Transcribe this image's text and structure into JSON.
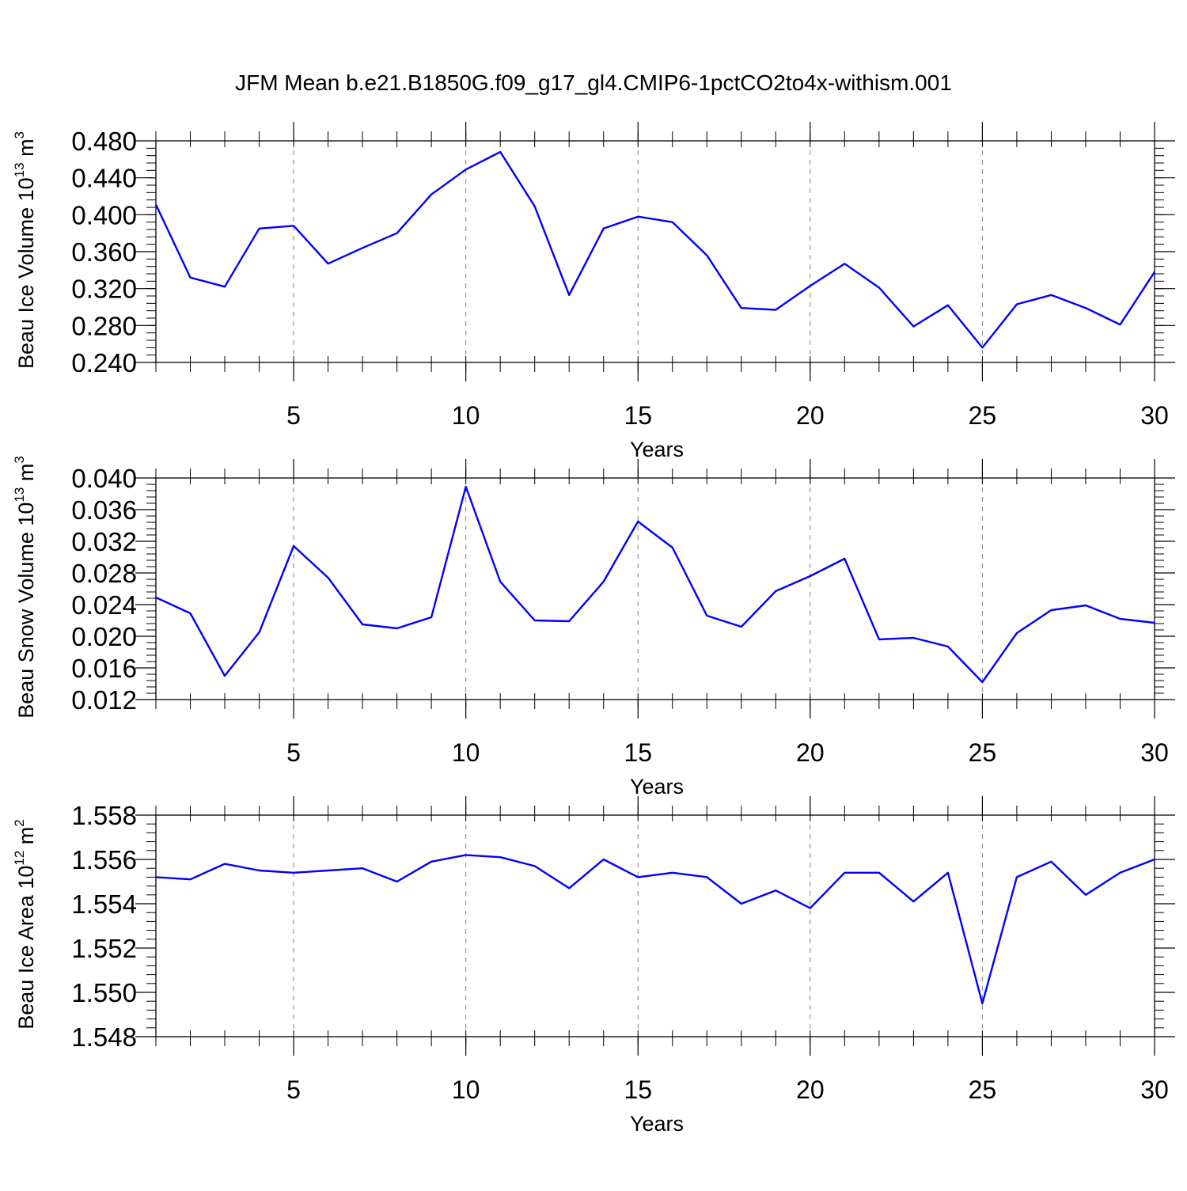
{
  "title": "JFM Mean b.e21.B1850G.f09_g17_gl4.CMIP6-1pctCO2to4x-withism.001",
  "colors": {
    "line": "#0000ff",
    "axis": "#000000",
    "grid": "#808080"
  },
  "chart_data": [
    {
      "type": "line",
      "ylabel_main": "Beau Ice Volume 10",
      "ylabel_exp": "13",
      "ylabel_unit": " m",
      "ylabel_unit_exp": "3",
      "xlabel": "Years",
      "xlim": [
        1,
        30
      ],
      "ylim": [
        0.24,
        0.48
      ],
      "yticks": [
        0.24,
        0.28,
        0.32,
        0.36,
        0.4,
        0.44,
        0.48
      ],
      "yticklabels": [
        "0.240",
        "0.280",
        "0.320",
        "0.360",
        "0.400",
        "0.440",
        "0.480"
      ],
      "xticks": [
        5,
        10,
        15,
        20,
        25,
        30
      ],
      "xticklabels": [
        "5",
        "10",
        "15",
        "20",
        "25",
        "30"
      ],
      "x": [
        1,
        2,
        3,
        4,
        5,
        6,
        7,
        8,
        9,
        10,
        11,
        12,
        13,
        14,
        15,
        16,
        17,
        18,
        19,
        20,
        21,
        22,
        23,
        24,
        25,
        26,
        27,
        28,
        29,
        30
      ],
      "series": [
        {
          "name": "Beau Ice Volume",
          "values": [
            0.411,
            0.332,
            0.322,
            0.385,
            0.388,
            0.347,
            0.364,
            0.38,
            0.422,
            0.449,
            0.468,
            0.409,
            0.313,
            0.385,
            0.398,
            0.392,
            0.356,
            0.299,
            0.297,
            0.323,
            0.347,
            0.321,
            0.279,
            0.302,
            0.256,
            0.303,
            0.313,
            0.299,
            0.281,
            0.338
          ]
        }
      ]
    },
    {
      "type": "line",
      "ylabel_main": "Beau Snow Volume 10",
      "ylabel_exp": "13",
      "ylabel_unit": " m",
      "ylabel_unit_exp": "3",
      "xlabel": "Years",
      "xlim": [
        1,
        30
      ],
      "ylim": [
        0.012,
        0.04
      ],
      "yticks": [
        0.012,
        0.016,
        0.02,
        0.024,
        0.028,
        0.032,
        0.036,
        0.04
      ],
      "yticklabels": [
        "0.012",
        "0.016",
        "0.020",
        "0.024",
        "0.028",
        "0.032",
        "0.036",
        "0.040"
      ],
      "xticks": [
        5,
        10,
        15,
        20,
        25,
        30
      ],
      "xticklabels": [
        "5",
        "10",
        "15",
        "20",
        "25",
        "30"
      ],
      "x": [
        1,
        2,
        3,
        4,
        5,
        6,
        7,
        8,
        9,
        10,
        11,
        12,
        13,
        14,
        15,
        16,
        17,
        18,
        19,
        20,
        21,
        22,
        23,
        24,
        25,
        26,
        27,
        28,
        29,
        30
      ],
      "series": [
        {
          "name": "Beau Snow Volume",
          "values": [
            0.0249,
            0.0229,
            0.015,
            0.0205,
            0.0314,
            0.0274,
            0.0215,
            0.021,
            0.0224,
            0.0389,
            0.0269,
            0.022,
            0.0219,
            0.0269,
            0.0345,
            0.0312,
            0.0226,
            0.0212,
            0.0257,
            0.0276,
            0.0298,
            0.0196,
            0.0198,
            0.0187,
            0.0142,
            0.0204,
            0.0233,
            0.0239,
            0.0222,
            0.0217
          ]
        }
      ]
    },
    {
      "type": "line",
      "ylabel_main": "Beau Ice Area 10",
      "ylabel_exp": "12",
      "ylabel_unit": " m",
      "ylabel_unit_exp": "2",
      "xlabel": "Years",
      "xlim": [
        1,
        30
      ],
      "ylim": [
        1.548,
        1.558
      ],
      "yticks": [
        1.548,
        1.55,
        1.552,
        1.554,
        1.556,
        1.558
      ],
      "yticklabels": [
        "1.548",
        "1.550",
        "1.552",
        "1.554",
        "1.556",
        "1.558"
      ],
      "xticks": [
        5,
        10,
        15,
        20,
        25,
        30
      ],
      "xticklabels": [
        "5",
        "10",
        "15",
        "20",
        "25",
        "30"
      ],
      "x": [
        1,
        2,
        3,
        4,
        5,
        6,
        7,
        8,
        9,
        10,
        11,
        12,
        13,
        14,
        15,
        16,
        17,
        18,
        19,
        20,
        21,
        22,
        23,
        24,
        25,
        26,
        27,
        28,
        29,
        30
      ],
      "series": [
        {
          "name": "Beau Ice Area",
          "values": [
            1.5552,
            1.5551,
            1.5558,
            1.5555,
            1.5554,
            1.5555,
            1.5556,
            1.555,
            1.5559,
            1.5562,
            1.5561,
            1.5557,
            1.5547,
            1.556,
            1.5552,
            1.5554,
            1.5552,
            1.554,
            1.5546,
            1.5538,
            1.5554,
            1.5554,
            1.5541,
            1.5554,
            1.5495,
            1.5552,
            1.5559,
            1.5544,
            1.5554,
            1.556
          ]
        }
      ]
    }
  ]
}
